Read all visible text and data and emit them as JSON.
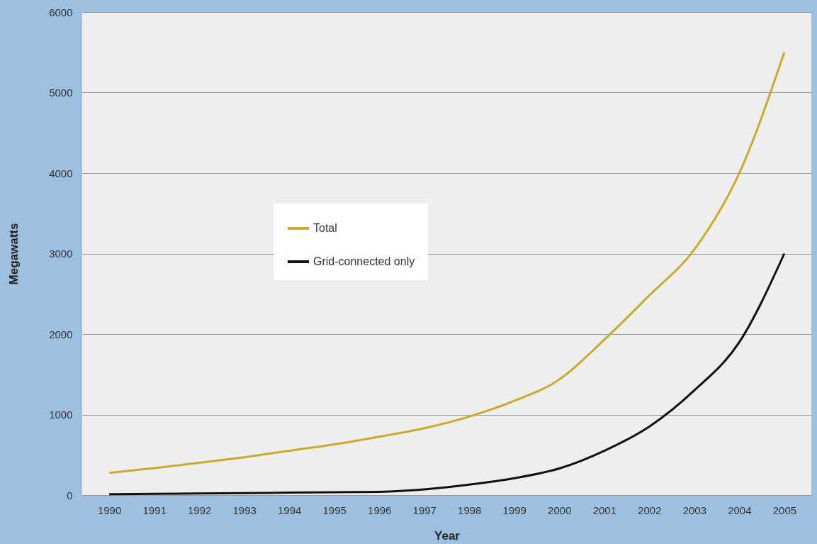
{
  "chart_data": {
    "type": "line",
    "xlabel": "Year",
    "ylabel": "Megawatts",
    "x": [
      1990,
      1991,
      1992,
      1993,
      1994,
      1995,
      1996,
      1997,
      1998,
      1999,
      2000,
      2001,
      2002,
      2003,
      2004,
      2005
    ],
    "series": [
      {
        "name": "Total",
        "color": "#c9aa2c",
        "values": [
          275,
          335,
          400,
          470,
          550,
          630,
          725,
          830,
          975,
          1170,
          1435,
          1930,
          2480,
          3050,
          4000,
          5500
        ]
      },
      {
        "name": "Grid-connected only",
        "color": "#111111",
        "values": [
          10,
          15,
          20,
          25,
          30,
          35,
          40,
          70,
          130,
          210,
          330,
          550,
          850,
          1300,
          1900,
          3000
        ]
      }
    ],
    "xlim": [
      1989.4,
      2005.6
    ],
    "xticks": [
      1990,
      1991,
      1992,
      1993,
      1994,
      1995,
      1996,
      1997,
      1998,
      1999,
      2000,
      2001,
      2002,
      2003,
      2004,
      2005
    ],
    "ylim": [
      0,
      6000
    ],
    "yticks": [
      0,
      1000,
      2000,
      3000,
      4000,
      5000,
      6000
    ],
    "grid": "y",
    "legend": "top left",
    "marker": "none",
    "line_style": "solid"
  }
}
